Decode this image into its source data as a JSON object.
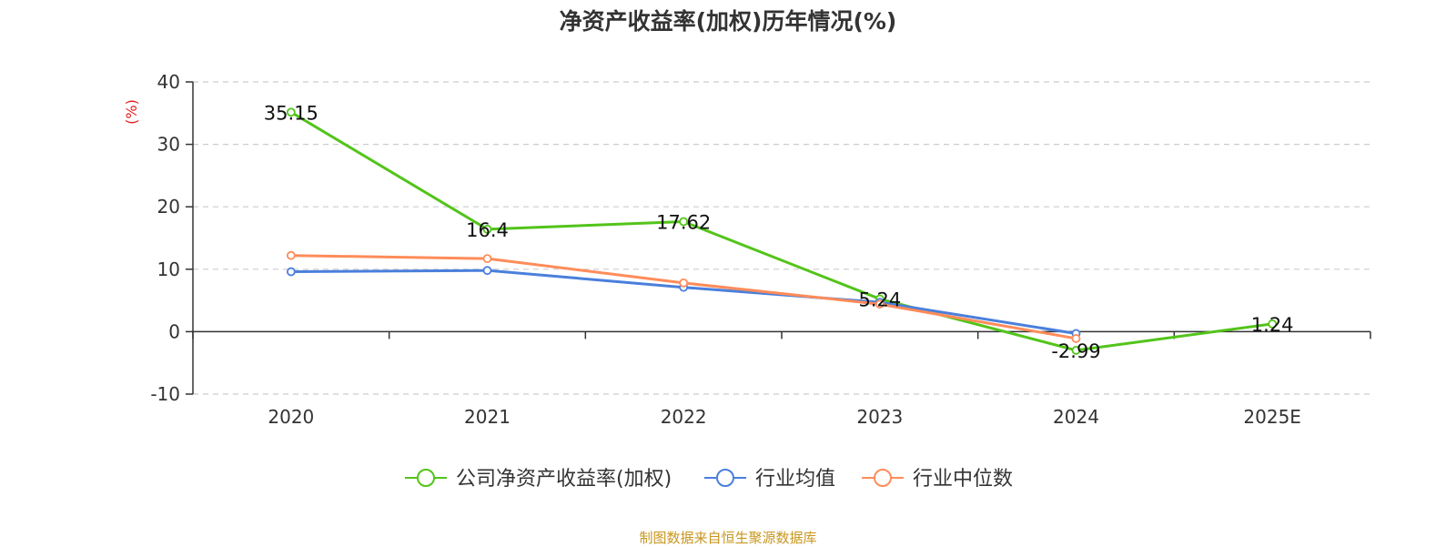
{
  "chart_data": {
    "type": "line",
    "title": "净资产收益率(加权)历年情况(%)",
    "unit": "(%)",
    "categories": [
      "2020",
      "2021",
      "2022",
      "2023",
      "2024",
      "2025E"
    ],
    "y_ticks": [
      40,
      30,
      20,
      10,
      0,
      -10
    ],
    "ylim": [
      -10,
      40
    ],
    "grid": true,
    "legend_position": "bottom",
    "series": [
      {
        "name": "公司净资产收益率(加权)",
        "color": "#52c41a",
        "values": [
          35.15,
          16.4,
          17.62,
          5.24,
          -2.99,
          1.24
        ],
        "labels": [
          "35.15",
          "16.4",
          "17.62",
          "5.24",
          "-2.99",
          "1.24"
        ]
      },
      {
        "name": "行业均值",
        "color": "#4a7fdc",
        "values": [
          9.6,
          9.8,
          7.1,
          4.7,
          -0.3,
          null
        ]
      },
      {
        "name": "行业中位数",
        "color": "#ff8c5a",
        "values": [
          12.2,
          11.7,
          7.8,
          4.4,
          -1.1,
          null
        ]
      }
    ]
  },
  "source": "制图数据来自恒生聚源数据库"
}
